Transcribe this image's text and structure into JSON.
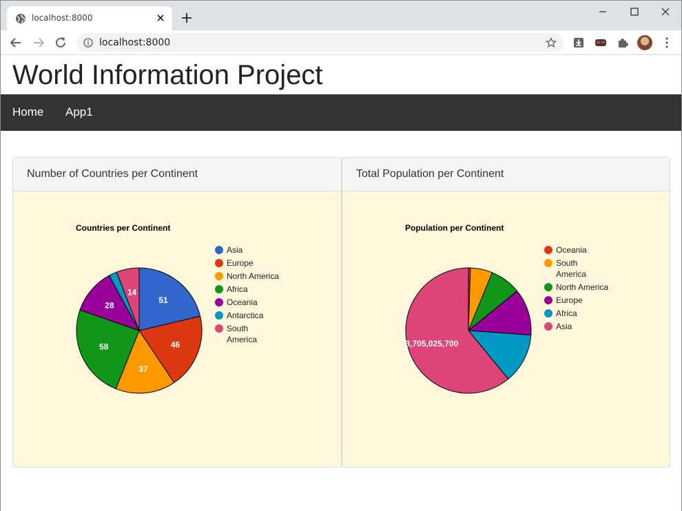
{
  "browser": {
    "tab_title": "localhost:8000",
    "url": "localhost:8000"
  },
  "site": {
    "title": "World Information Project"
  },
  "nav": {
    "items": [
      {
        "label": "Home"
      },
      {
        "label": "App1"
      }
    ]
  },
  "panels": [
    {
      "title": "Number of Countries per Continent"
    },
    {
      "title": "Total Population per Continent"
    }
  ],
  "colors": {
    "panel_bg": "#fff7dc",
    "navbar": "#333333"
  },
  "chart_data": [
    {
      "type": "pie",
      "title": "Countries per Continent",
      "legend": "right",
      "slices": [
        {
          "label": "Asia",
          "value": 51,
          "color": "#3366cc",
          "show_value": true
        },
        {
          "label": "Europe",
          "value": 46,
          "color": "#dc3912",
          "show_value": true
        },
        {
          "label": "North America",
          "value": 37,
          "color": "#ff9900",
          "show_value": true
        },
        {
          "label": "Africa",
          "value": 58,
          "color": "#109618",
          "show_value": true
        },
        {
          "label": "Oceania",
          "value": 28,
          "color": "#990099",
          "show_value": true
        },
        {
          "label": "Antarctica",
          "value": 5,
          "color": "#0099c6",
          "show_value": false
        },
        {
          "label": "South America",
          "value": 14,
          "color": "#dd4477",
          "show_value": true
        }
      ]
    },
    {
      "type": "pie",
      "title": "Population per Continent",
      "legend": "right",
      "slices": [
        {
          "label": "Oceania",
          "value": 30401150,
          "color": "#dc3912",
          "show_value": false
        },
        {
          "label": "South America",
          "value": 345780000,
          "color": "#ff9900",
          "show_value": false
        },
        {
          "label": "North America",
          "value": 482993000,
          "color": "#109618",
          "show_value": false
        },
        {
          "label": "Europe",
          "value": 730074600,
          "color": "#990099",
          "show_value": false
        },
        {
          "label": "Africa",
          "value": 784475000,
          "color": "#0099c6",
          "show_value": false
        },
        {
          "label": "Asia",
          "value": 3705025700,
          "color": "#dd4477",
          "show_value": true,
          "value_text": "3,705,025,700"
        }
      ]
    }
  ]
}
